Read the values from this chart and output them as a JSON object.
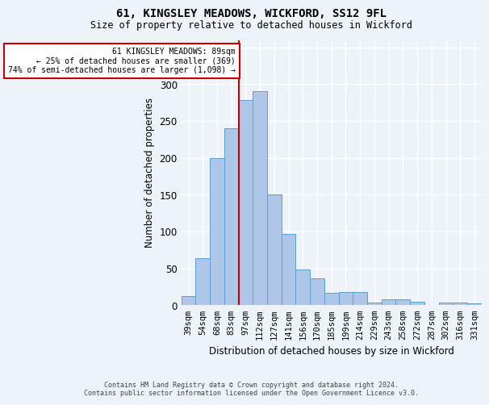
{
  "title": "61, KINGSLEY MEADOWS, WICKFORD, SS12 9FL",
  "subtitle": "Size of property relative to detached houses in Wickford",
  "xlabel": "Distribution of detached houses by size in Wickford",
  "ylabel": "Number of detached properties",
  "categories": [
    "39sqm",
    "54sqm",
    "68sqm",
    "83sqm",
    "97sqm",
    "112sqm",
    "127sqm",
    "141sqm",
    "156sqm",
    "170sqm",
    "185sqm",
    "199sqm",
    "214sqm",
    "229sqm",
    "243sqm",
    "258sqm",
    "272sqm",
    "287sqm",
    "302sqm",
    "316sqm",
    "331sqm"
  ],
  "values": [
    12,
    64,
    200,
    240,
    278,
    291,
    150,
    97,
    49,
    36,
    17,
    18,
    18,
    4,
    8,
    8,
    5,
    0,
    4,
    4,
    3
  ],
  "bar_color": "#aec6e8",
  "bar_edge_color": "#5a9fd4",
  "vline_index": 3.5,
  "marker_label_line1": "61 KINGSLEY MEADOWS: 89sqm",
  "marker_label_line2": "← 25% of detached houses are smaller (369)",
  "marker_label_line3": "74% of semi-detached houses are larger (1,098) →",
  "vline_color": "#cc0000",
  "annotation_box_color": "#cc0000",
  "ylim": [
    0,
    360
  ],
  "yticks": [
    0,
    50,
    100,
    150,
    200,
    250,
    300,
    350
  ],
  "background_color": "#eef2f9",
  "grid_color": "#ffffff",
  "footer_line1": "Contains HM Land Registry data © Crown copyright and database right 2024.",
  "footer_line2": "Contains public sector information licensed under the Open Government Licence v3.0."
}
